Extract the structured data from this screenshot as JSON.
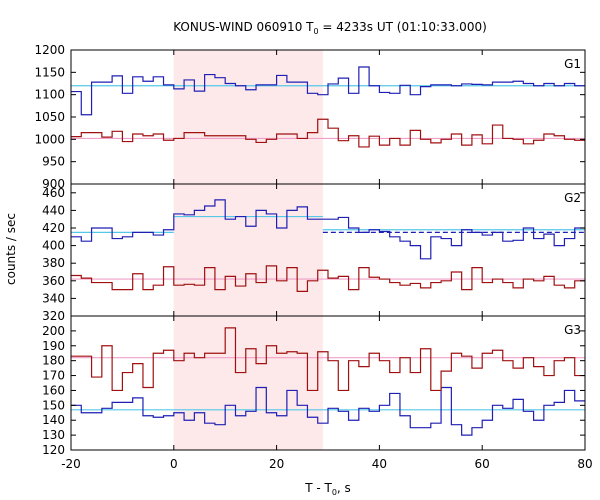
{
  "chart_data": {
    "type": "line",
    "title_main": "KONUS-WIND 060910 T",
    "title_sub": "0",
    "title_rest": " = 4233s UT (01:10:33.000)",
    "xlabel_main": "T - T",
    "xlabel_sub": "0",
    "xlabel_rest": ", s",
    "ylabel": "counts / sec",
    "xlim": [
      -20,
      80
    ],
    "x_ticks": [
      "-20",
      "0",
      "20",
      "40",
      "60",
      "80"
    ],
    "x_tick_values": [
      -20,
      0,
      20,
      40,
      60,
      80
    ],
    "shaded_interval": [
      0,
      29
    ],
    "colors": {
      "blue": "#1f1fb4",
      "red": "#a01010",
      "cyan": "#55c8e8",
      "pink": "#f0a0c8",
      "shade": "#fde8ea"
    },
    "panels": [
      {
        "name": "G1",
        "ylim": [
          900,
          1200
        ],
        "y_ticks": [
          "900",
          "950",
          "1000",
          "1050",
          "1100",
          "1150",
          "1200"
        ],
        "y_tick_values": [
          900,
          950,
          1000,
          1050,
          1100,
          1150,
          1200
        ],
        "series": [
          {
            "color": "blue",
            "x_start": -20,
            "step": 2,
            "values": [
              1107,
              1055,
              1128,
              1128,
              1142,
              1103,
              1140,
              1130,
              1140,
              1122,
              1113,
              1133,
              1108,
              1145,
              1138,
              1125,
              1120,
              1111,
              1122,
              1122,
              1143,
              1128,
              1128,
              1103,
              1100,
              1124,
              1137,
              1103,
              1162,
              1120,
              1105,
              1103,
              1121,
              1100,
              1118,
              1122,
              1122,
              1120,
              1124,
              1123,
              1122,
              1128,
              1128,
              1130,
              1125,
              1120,
              1125,
              1120,
              1125,
              1120
            ]
          },
          {
            "color": "red",
            "x_start": -20,
            "step": 2,
            "values": [
              1006,
              1015,
              1015,
              1005,
              1018,
              995,
              1012,
              1008,
              1012,
              998,
              1002,
              1015,
              1015,
              1008,
              1008,
              1008,
              1008,
              1000,
              993,
              1000,
              1012,
              1012,
              1002,
              1015,
              1045,
              1025,
              997,
              1008,
              983,
              1007,
              987,
              1002,
              987,
              1020,
              1000,
              992,
              1000,
              1012,
              987,
              1010,
              990,
              1032,
              1002,
              1000,
              990,
              998,
              1012,
              1008,
              1000,
              998
            ]
          }
        ],
        "fit_lines": [
          {
            "color": "cyan",
            "value": 1120
          },
          {
            "color": "pink",
            "value": 1002
          }
        ]
      },
      {
        "name": "G2",
        "ylim": [
          320,
          470
        ],
        "y_ticks": [
          "320",
          "340",
          "360",
          "380",
          "400",
          "420",
          "440",
          "460"
        ],
        "y_tick_values": [
          320,
          340,
          360,
          380,
          400,
          420,
          440,
          460
        ],
        "series": [
          {
            "color": "blue",
            "x_start": -20,
            "step": 2,
            "values": [
              410,
              405,
              420,
              420,
              408,
              410,
              415,
              415,
              412,
              418,
              436,
              435,
              440,
              445,
              452,
              430,
              433,
              422,
              440,
              436,
              420,
              440,
              444,
              430,
              430,
              430,
              432,
              420,
              415,
              418,
              416,
              410,
              405,
              400,
              385,
              410,
              408,
              400,
              418,
              415,
              412,
              415,
              405,
              406,
              420,
              408,
              413,
              400,
              408,
              420
            ]
          },
          {
            "color": "red",
            "x_start": -20,
            "step": 2,
            "values": [
              366,
              363,
              358,
              358,
              350,
              350,
              368,
              350,
              355,
              376,
              355,
              356,
              355,
              375,
              350,
              365,
              354,
              368,
              358,
              377,
              360,
              375,
              348,
              360,
              372,
              363,
              365,
              350,
              375,
              364,
              362,
              358,
              355,
              357,
              352,
              358,
              360,
              370,
              350,
              375,
              358,
              362,
              358,
              352,
              362,
              360,
              365,
              355,
              352,
              360
            ]
          }
        ],
        "fit_lines": [
          {
            "color": "cyan",
            "value": 415,
            "x_range": [
              -20,
              0
            ]
          },
          {
            "color": "cyan",
            "value": 433,
            "x_range": [
              0,
              29
            ]
          },
          {
            "color": "cyan",
            "value": 418,
            "x_range": [
              29,
              80
            ]
          },
          {
            "color": "blue",
            "value": 415,
            "dashed": true,
            "x_range": [
              29,
              80
            ]
          },
          {
            "color": "pink",
            "value": 362
          }
        ]
      },
      {
        "name": "G3",
        "ylim": [
          120,
          210
        ],
        "y_ticks": [
          "120",
          "130",
          "140",
          "150",
          "160",
          "170",
          "180",
          "190",
          "200"
        ],
        "y_tick_values": [
          120,
          130,
          140,
          150,
          160,
          170,
          180,
          190,
          200
        ],
        "series": [
          {
            "color": "blue",
            "x_start": -20,
            "step": 2,
            "values": [
              150,
              145,
              145,
              148,
              152,
              152,
              155,
              143,
              142,
              143,
              145,
              140,
              145,
              138,
              137,
              150,
              143,
              146,
              162,
              145,
              143,
              160,
              150,
              142,
              138,
              148,
              146,
              140,
              148,
              146,
              150,
              158,
              143,
              135,
              135,
              138,
              162,
              137,
              130,
              135,
              140,
              150,
              148,
              154,
              146,
              140,
              150,
              152,
              160,
              153
            ]
          },
          {
            "color": "red",
            "x_start": -20,
            "step": 2,
            "values": [
              183,
              183,
              169,
              190,
              160,
              172,
              178,
              162,
              185,
              187,
              180,
              185,
              182,
              185,
              185,
              202,
              172,
              188,
              178,
              190,
              185,
              186,
              185,
              160,
              186,
              180,
              160,
              180,
              176,
              185,
              180,
              172,
              182,
              172,
              188,
              160,
              173,
              185,
              183,
              175,
              185,
              187,
              180,
              175,
              182,
              176,
              170,
              180,
              182,
              170
            ]
          }
        ],
        "fit_lines": [
          {
            "color": "cyan",
            "value": 147
          },
          {
            "color": "pink",
            "value": 182
          }
        ]
      }
    ]
  }
}
